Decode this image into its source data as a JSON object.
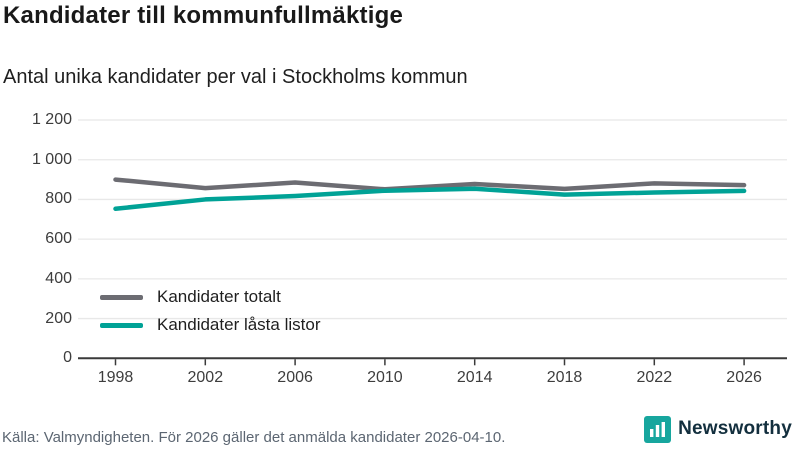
{
  "header": {
    "title": "Kandidater till kommunfullmäktige",
    "subtitle": "Antal unika kandidater per val i Stockholms kommun"
  },
  "chart_data": {
    "type": "line",
    "title": "Kandidater till kommunfullmäktige",
    "subtitle": "Antal unika kandidater per val i Stockholms kommun",
    "x": [
      1998,
      2002,
      2006,
      2010,
      2014,
      2018,
      2022,
      2026
    ],
    "xtick_labels": [
      "1998",
      "2002",
      "2006",
      "2010",
      "2014",
      "2018",
      "2022",
      "2026"
    ],
    "series": [
      {
        "name": "Kandidater totalt",
        "color": "#6c6c72",
        "values": [
          900,
          857,
          885,
          851,
          878,
          853,
          881,
          872
        ]
      },
      {
        "name": "Kandidater låsta listor",
        "color": "#00a296",
        "values": [
          753,
          800,
          817,
          844,
          854,
          824,
          835,
          843
        ]
      }
    ],
    "ylim": [
      0,
      1200
    ],
    "yticks": [
      0,
      200,
      400,
      600,
      800,
      1000,
      1200
    ],
    "ytick_labels": [
      "0",
      "200",
      "400",
      "600",
      "800",
      "1 000",
      "1 200"
    ],
    "grid": true,
    "legend_position": "inside-bottom-left"
  },
  "footer": {
    "source": "Källa: Valmyndigheten. För 2026 gäller det anmälda kandidater 2026-04-10.",
    "brand": "Newsworthy"
  },
  "icons": {
    "brand_icon": "bar-chart-logo"
  },
  "colors": {
    "series_total": "#6c6c72",
    "series_locked": "#00a296",
    "grid": "#e8e8e8",
    "axis": "#3a3a3a",
    "title_text": "#191919",
    "tick_text": "#3d3d3d",
    "footer_text": "#5c6672",
    "brand_teal": "#17a69e",
    "brand_navy": "#132f3e"
  }
}
